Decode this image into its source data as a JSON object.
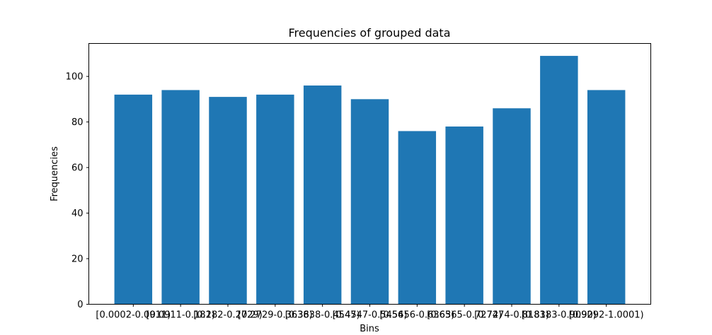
{
  "chart_data": {
    "type": "bar",
    "title": "Frequencies of grouped data",
    "xlabel": "Bins",
    "ylabel": "Frequencies",
    "categories": [
      "[0.0002-0.0911)",
      "[0.0911-0.182)",
      "[0.182-0.2729)",
      "[0.2729-0.3638)",
      "[0.3638-0.4547)",
      "[0.4547-0.5456)",
      "[0.5456-0.6365)",
      "[0.6365-0.7274)",
      "[0.7274-0.8183)",
      "[0.8183-0.9092)",
      "[0.9092-1.0001)"
    ],
    "values": [
      92,
      94,
      91,
      92,
      96,
      90,
      76,
      78,
      86,
      109,
      94
    ],
    "ylim": [
      0,
      114.45
    ],
    "yticks": [
      0,
      20,
      40,
      60,
      80,
      100
    ],
    "bar_color": "#1f77b4",
    "grid": false
  }
}
